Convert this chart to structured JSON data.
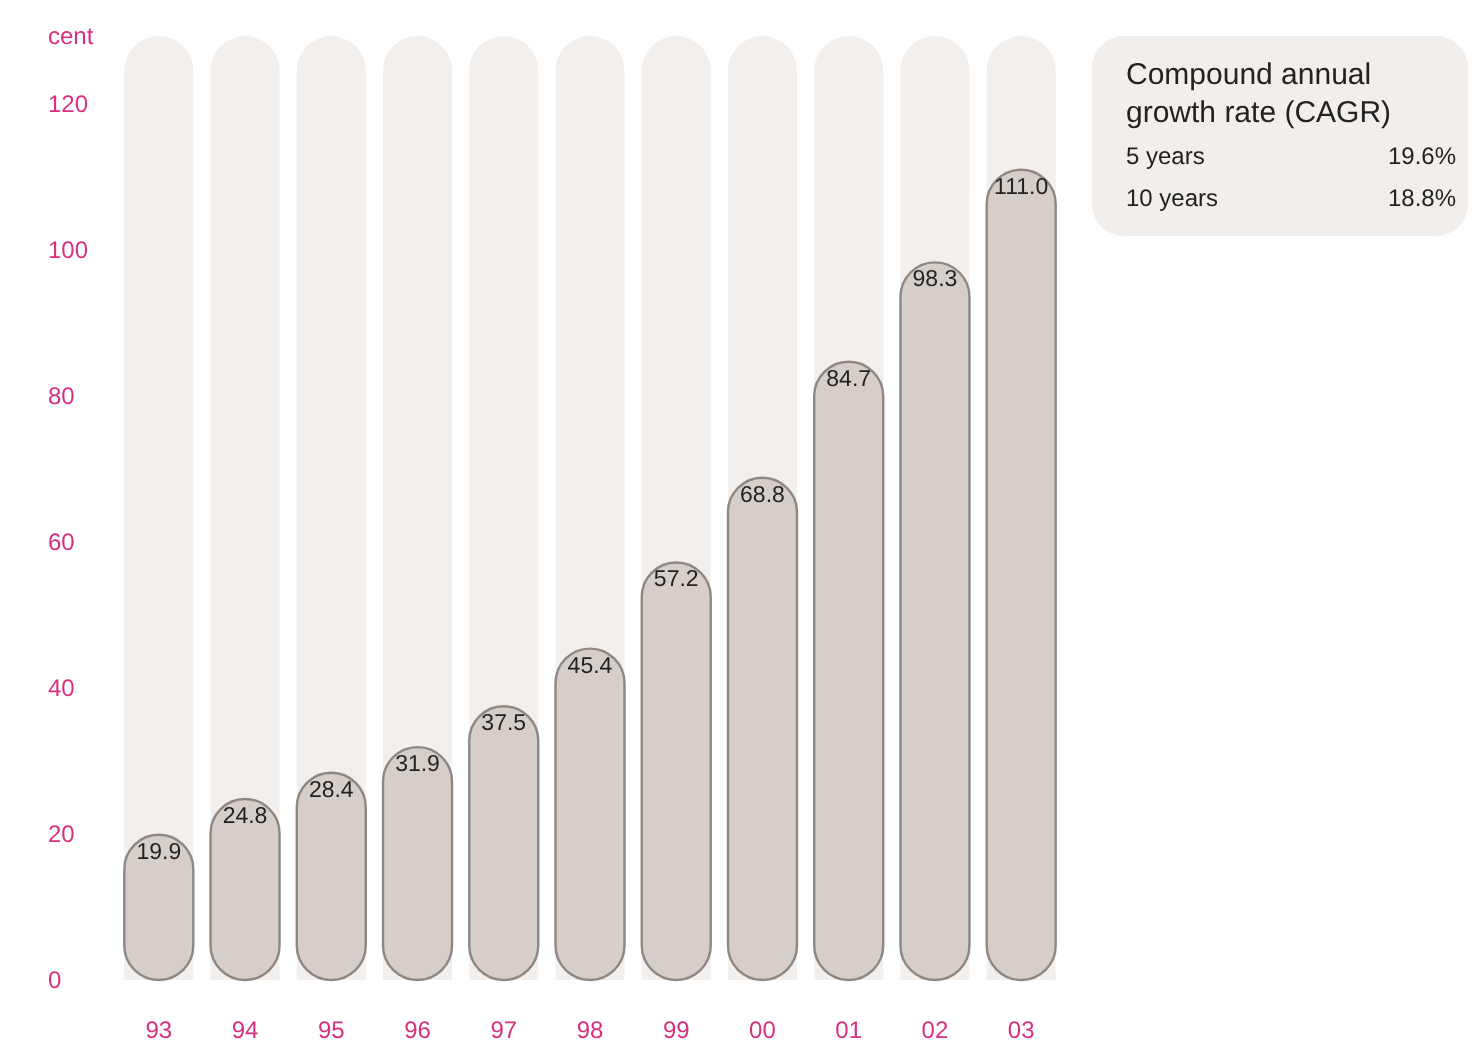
{
  "chart_data": {
    "type": "bar",
    "ylabel": "cent",
    "categories": [
      "93",
      "94",
      "95",
      "96",
      "97",
      "98",
      "99",
      "00",
      "01",
      "02",
      "03"
    ],
    "values": [
      19.9,
      24.8,
      28.4,
      31.9,
      37.5,
      45.4,
      57.2,
      68.8,
      84.7,
      98.3,
      111.0
    ],
    "value_labels": [
      "19.9",
      "24.8",
      "28.4",
      "31.9",
      "37.5",
      "45.4",
      "57.2",
      "68.8",
      "84.7",
      "98.3",
      "111.0"
    ],
    "color": "#d6cec8",
    "ylim": [
      0,
      120
    ],
    "yticks": [
      0,
      20,
      40,
      60,
      80,
      100,
      120
    ],
    "grid": false,
    "annotations": [
      "Compound annual growth rate (CAGR)",
      "5 years",
      "19.6%",
      "10 years",
      "18.8%"
    ]
  }
}
